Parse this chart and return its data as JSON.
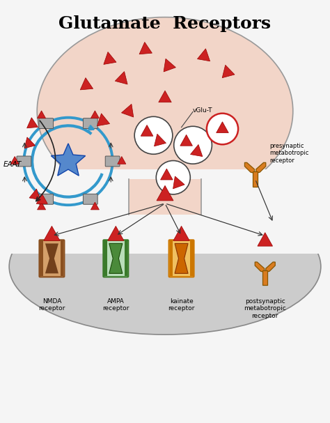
{
  "title": "Glutamate  Receptors",
  "title_fontsize": 18,
  "title_fontweight": "bold",
  "bg_color": "#f5f5f5",
  "presynaptic_color": "#f2d5c8",
  "postsynaptic_color": "#d0d0d0",
  "blue_arrow_color": "#3399cc",
  "red_color": "#cc2222",
  "dark_brown": "#7a4a2a",
  "orange_color": "#d97c20",
  "green_color": "#4a8a3a",
  "labels": {
    "EAAT": "EAAT",
    "vGlu_T": "vGlu-T",
    "presynaptic": "presynaptic\nmetabotropic\nreceptor",
    "NMDA": "NMDA\nreceptor",
    "AMPA": "AMPA\nreceptor",
    "kainate": "kainate\nreceptor",
    "postsynaptic": "postsynaptic\nmetabotropic\nreceptor"
  }
}
